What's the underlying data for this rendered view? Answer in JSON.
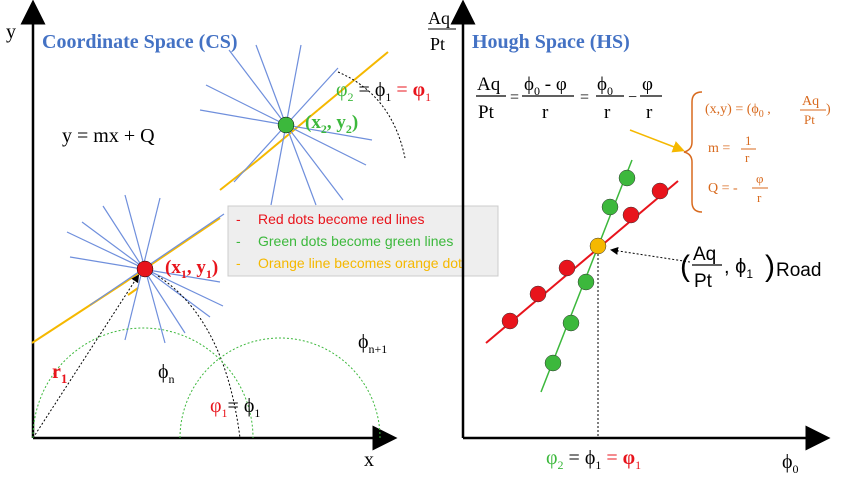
{
  "colors": {
    "axis": "#000000",
    "title_blue": "#4472c4",
    "projection_blue": "#6f8fdc",
    "orange": "#f5b800",
    "red": "#e8141c",
    "green": "#3cb83c",
    "formula_orange": "#d86a1e",
    "legend_bg": "#eeeeee"
  },
  "cs": {
    "title": "Coordinate Space (CS)",
    "y_axis": "y",
    "x_axis": "x",
    "equation": "y = mx + Q",
    "p1": {
      "label": "(x",
      "sub1": "1",
      "mid": ", y",
      "sub2": "1",
      "end": ")"
    },
    "p2": {
      "label": "(x",
      "sub1": "2",
      "mid": ", y",
      "sub2": "2",
      "end": ")"
    },
    "r1": {
      "main": "r",
      "sub": "1"
    },
    "phi_n": {
      "main": "ϕ",
      "sub": "n"
    },
    "phi_n1": {
      "main": "ϕ",
      "sub": "n+1"
    },
    "angle_eq_bottom": {
      "lhs": "φ",
      "lhs_sub": "1",
      "eq": "= ",
      "rhs": "ϕ",
      "rhs_sub": "1"
    },
    "angle_eq_top": {
      "a": "φ",
      "a_sub": "2",
      "eq1": " = ",
      "b": "ϕ",
      "b_sub": "1",
      "eq2": " = ",
      "c": "φ",
      "c_sub": "1"
    }
  },
  "legend": {
    "items": [
      {
        "dash": "-",
        "text": "Red dots become red lines"
      },
      {
        "dash": "-",
        "text": "Green dots become green lines"
      },
      {
        "dash": "-",
        "text": "Orange line becomes orange dot"
      }
    ]
  },
  "hs": {
    "title": "Hough Space (HS)",
    "y_axis_num": "Aq",
    "y_axis_den": "Pt",
    "x_axis": {
      "main": "ϕ",
      "sub": "0"
    },
    "main_formula": {
      "lhs_num": "Aq",
      "lhs_den": "Pt",
      "f1_num": "ϕ",
      "f1_num_sub": "0",
      "f1_num_rest": " - φ",
      "f1_den": "r",
      "f2_num": "ϕ",
      "f2_num_sub": "0",
      "f2_den": "r",
      "f3_num": "φ",
      "f3_den": "r",
      "eq": "=",
      "minus": "−"
    },
    "mapping": {
      "xy": "(x,y) = (ϕ",
      "xy_sub": "0",
      "xy_mid": " ,",
      "aq": "Aq",
      "pt": "Pt",
      "xy_end": ")",
      "m_lhs": "m =",
      "m_num": "1",
      "m_den": "r",
      "q_lhs": "Q = -",
      "q_num": "φ",
      "q_den": "r"
    },
    "road": {
      "open": "(",
      "num": "Aq",
      "den": "Pt",
      "comma": ", ",
      "phi": "ϕ",
      "phi_sub": "1",
      "close": ")",
      "sub_label": "Road"
    },
    "bottom_eq": {
      "a": "φ",
      "a_sub": "2",
      "eq1": " = ",
      "b": "ϕ",
      "b_sub": "1",
      "eq2": " = ",
      "c": "φ",
      "c_sub": "1"
    }
  }
}
